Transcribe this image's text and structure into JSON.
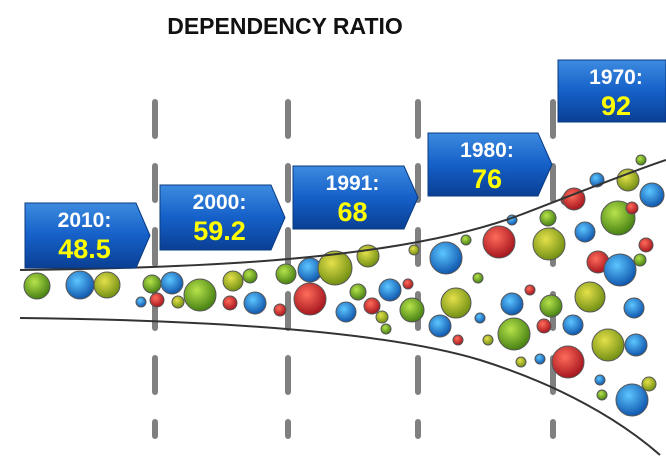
{
  "title": "DEPENDENCY RATIO",
  "items": [
    {
      "label": "2010:",
      "value": 48.5
    },
    {
      "label": "2000:",
      "value": 59.2
    },
    {
      "label": "1991:",
      "value": 68
    },
    {
      "label": "1980:",
      "value": 76
    },
    {
      "label": "1970:",
      "value": 92
    }
  ]
}
